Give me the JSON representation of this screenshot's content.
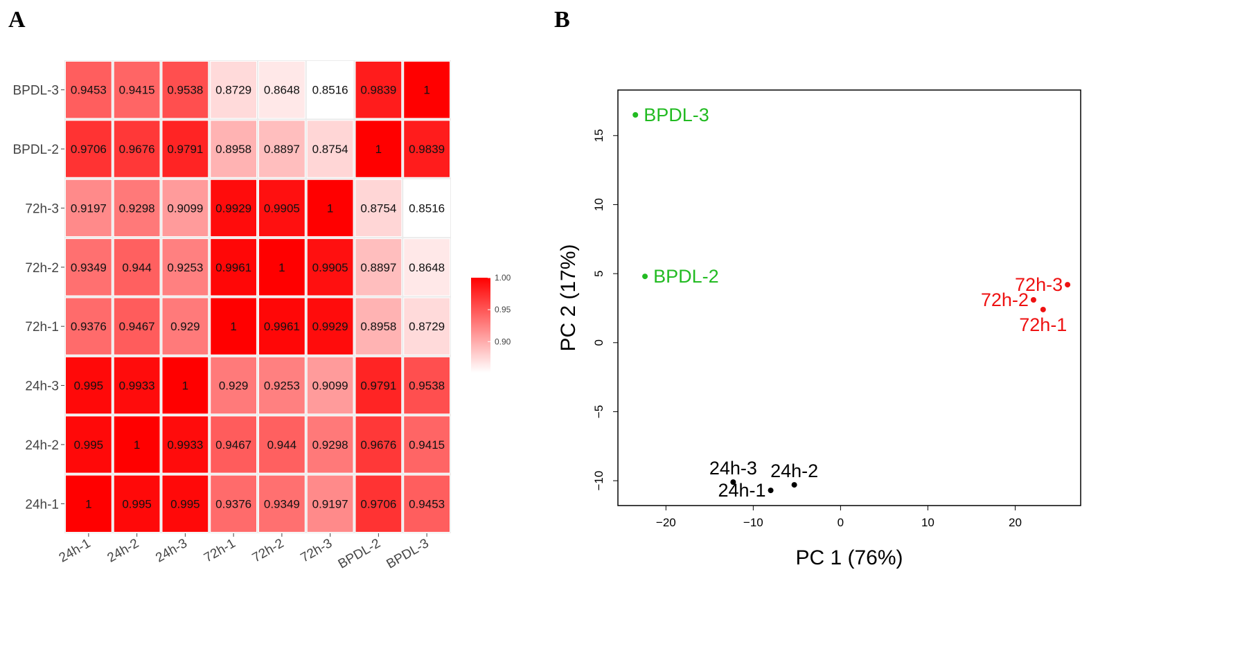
{
  "panels": {
    "a_label": "A",
    "b_label": "B"
  },
  "chart_data": [
    {
      "type": "heatmap",
      "row_labels": [
        "BPDL-3",
        "BPDL-2",
        "72h-3",
        "72h-2",
        "72h-1",
        "24h-3",
        "24h-2",
        "24h-1"
      ],
      "col_labels": [
        "24h-1",
        "24h-2",
        "24h-3",
        "72h-1",
        "72h-2",
        "72h-3",
        "BPDL-2",
        "BPDL-3"
      ],
      "values": [
        [
          "0.9453",
          "0.9415",
          "0.9538",
          "0.8729",
          "0.8648",
          "0.8516",
          "0.9839",
          "1"
        ],
        [
          "0.9706",
          "0.9676",
          "0.9791",
          "0.8958",
          "0.8897",
          "0.8754",
          "1",
          "0.9839"
        ],
        [
          "0.9197",
          "0.9298",
          "0.9099",
          "0.9929",
          "0.9905",
          "1",
          "0.8754",
          "0.8516"
        ],
        [
          "0.9349",
          "0.944",
          "0.9253",
          "0.9961",
          "1",
          "0.9905",
          "0.8897",
          "0.8648"
        ],
        [
          "0.9376",
          "0.9467",
          "0.929",
          "1",
          "0.9961",
          "0.9929",
          "0.8958",
          "0.8729"
        ],
        [
          "0.995",
          "0.9933",
          "1",
          "0.929",
          "0.9253",
          "0.9099",
          "0.9791",
          "0.9538"
        ],
        [
          "0.995",
          "1",
          "0.9933",
          "0.9467",
          "0.944",
          "0.9298",
          "0.9676",
          "0.9415"
        ],
        [
          "1",
          "0.995",
          "0.995",
          "0.9376",
          "0.9349",
          "0.9197",
          "0.9706",
          "0.9453"
        ]
      ],
      "color_min": 0.8516,
      "color_max": 1.0,
      "color_low": "#ffffff",
      "color_high": "#ff0000",
      "legend": {
        "ticks": [
          "1.00",
          "0.95",
          "0.90"
        ],
        "tick_values": [
          1.0,
          0.95,
          0.9
        ],
        "placement": "right"
      }
    },
    {
      "type": "scatter",
      "xlabel": "PC 1 (76%)",
      "ylabel": "PC 2 (17%)",
      "xlim": [
        -25.5,
        27.5
      ],
      "ylim": [
        -11.8,
        18.3
      ],
      "xticks": [
        -20,
        -10,
        0,
        10,
        20
      ],
      "xtick_labels": [
        "−20",
        "−10",
        "0",
        "10",
        "20"
      ],
      "yticks": [
        -10,
        -5,
        0,
        5,
        10,
        15
      ],
      "yticks_labels": [
        "−10",
        "−5",
        "0",
        "5",
        "10",
        "15"
      ],
      "points": [
        {
          "label": "BPDL-3",
          "x": -23.5,
          "y": 16.5,
          "group": "BPDL",
          "label_side": "right"
        },
        {
          "label": "BPDL-2",
          "x": -22.4,
          "y": 4.8,
          "group": "BPDL",
          "label_side": "right"
        },
        {
          "label": "72h-3",
          "x": 26.0,
          "y": 4.2,
          "group": "72h",
          "label_side": "left"
        },
        {
          "label": "72h-2",
          "x": 22.1,
          "y": 3.1,
          "group": "72h",
          "label_side": "left"
        },
        {
          "label": "72h-1",
          "x": 23.2,
          "y": 2.4,
          "group": "72h",
          "label_side": "below"
        },
        {
          "label": "24h-3",
          "x": -12.3,
          "y": -10.1,
          "group": "24h",
          "label_side": "above"
        },
        {
          "label": "24h-1",
          "x": -8.0,
          "y": -10.7,
          "group": "24h",
          "label_side": "left"
        },
        {
          "label": "24h-2",
          "x": -5.3,
          "y": -10.3,
          "group": "24h",
          "label_side": "above"
        }
      ],
      "group_colors": {
        "BPDL": "#22bb22",
        "72h": "#ee1111",
        "24h": "#000000"
      },
      "grid": false
    }
  ]
}
